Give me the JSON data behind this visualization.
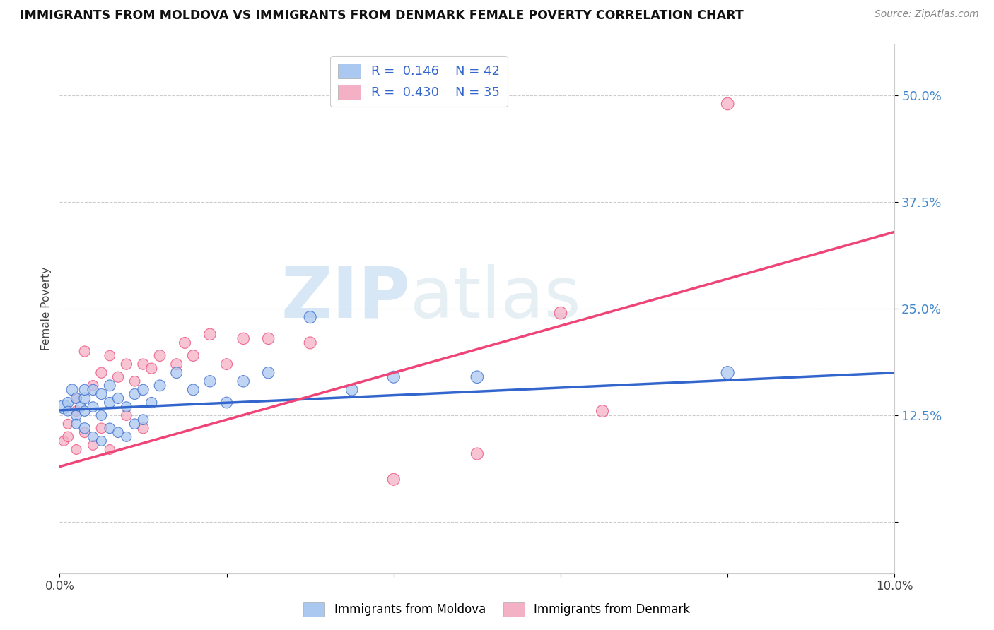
{
  "title": "IMMIGRANTS FROM MOLDOVA VS IMMIGRANTS FROM DENMARK FEMALE POVERTY CORRELATION CHART",
  "source": "Source: ZipAtlas.com",
  "ylabel": "Female Poverty",
  "xlim": [
    0.0,
    0.1
  ],
  "ylim": [
    -0.06,
    0.56
  ],
  "yticks": [
    0.0,
    0.125,
    0.25,
    0.375,
    0.5
  ],
  "ytick_labels": [
    "",
    "12.5%",
    "25.0%",
    "37.5%",
    "50.0%"
  ],
  "xticks": [
    0.0,
    0.02,
    0.04,
    0.06,
    0.08,
    0.1
  ],
  "xtick_labels": [
    "0.0%",
    "",
    "",
    "",
    "",
    "10.0%"
  ],
  "color_moldova": "#aac8f0",
  "color_denmark": "#f4b0c4",
  "line_color_moldova": "#3366cc",
  "line_color_denmark": "#ee4477",
  "watermark_zip": "ZIP",
  "watermark_atlas": "atlas",
  "moldova_x": [
    0.0005,
    0.001,
    0.001,
    0.0015,
    0.002,
    0.002,
    0.002,
    0.0025,
    0.003,
    0.003,
    0.003,
    0.003,
    0.004,
    0.004,
    0.004,
    0.005,
    0.005,
    0.005,
    0.006,
    0.006,
    0.006,
    0.007,
    0.007,
    0.008,
    0.008,
    0.009,
    0.009,
    0.01,
    0.01,
    0.011,
    0.012,
    0.014,
    0.016,
    0.018,
    0.02,
    0.022,
    0.025,
    0.03,
    0.035,
    0.04,
    0.05,
    0.08
  ],
  "moldova_y": [
    0.135,
    0.14,
    0.13,
    0.155,
    0.125,
    0.145,
    0.115,
    0.135,
    0.11,
    0.145,
    0.13,
    0.155,
    0.1,
    0.135,
    0.155,
    0.095,
    0.125,
    0.15,
    0.11,
    0.14,
    0.16,
    0.105,
    0.145,
    0.1,
    0.135,
    0.115,
    0.15,
    0.12,
    0.155,
    0.14,
    0.16,
    0.175,
    0.155,
    0.165,
    0.14,
    0.165,
    0.175,
    0.24,
    0.155,
    0.17,
    0.17,
    0.175
  ],
  "moldova_sizes": [
    200,
    120,
    100,
    130,
    110,
    120,
    100,
    110,
    120,
    130,
    110,
    120,
    100,
    110,
    120,
    100,
    110,
    120,
    110,
    120,
    130,
    110,
    120,
    100,
    110,
    110,
    120,
    110,
    120,
    120,
    130,
    130,
    130,
    140,
    130,
    140,
    140,
    150,
    140,
    150,
    160,
    170
  ],
  "denmark_x": [
    0.0005,
    0.001,
    0.001,
    0.002,
    0.002,
    0.002,
    0.003,
    0.003,
    0.004,
    0.004,
    0.005,
    0.005,
    0.006,
    0.006,
    0.007,
    0.008,
    0.008,
    0.009,
    0.01,
    0.01,
    0.011,
    0.012,
    0.014,
    0.015,
    0.016,
    0.018,
    0.02,
    0.022,
    0.025,
    0.03,
    0.04,
    0.05,
    0.06,
    0.065,
    0.08
  ],
  "denmark_y": [
    0.095,
    0.1,
    0.115,
    0.085,
    0.13,
    0.145,
    0.105,
    0.2,
    0.09,
    0.16,
    0.11,
    0.175,
    0.085,
    0.195,
    0.17,
    0.125,
    0.185,
    0.165,
    0.11,
    0.185,
    0.18,
    0.195,
    0.185,
    0.21,
    0.195,
    0.22,
    0.185,
    0.215,
    0.215,
    0.21,
    0.05,
    0.08,
    0.245,
    0.13,
    0.49
  ],
  "denmark_sizes": [
    100,
    110,
    100,
    100,
    110,
    100,
    110,
    120,
    100,
    110,
    110,
    120,
    100,
    110,
    120,
    110,
    120,
    110,
    120,
    120,
    120,
    130,
    130,
    130,
    130,
    140,
    130,
    140,
    140,
    150,
    150,
    150,
    160,
    150,
    160
  ],
  "moldova_trend_x": [
    0.0,
    0.1
  ],
  "moldova_trend_y": [
    0.131,
    0.175
  ],
  "denmark_trend_x": [
    0.0,
    0.1
  ],
  "denmark_trend_y": [
    0.065,
    0.34
  ]
}
